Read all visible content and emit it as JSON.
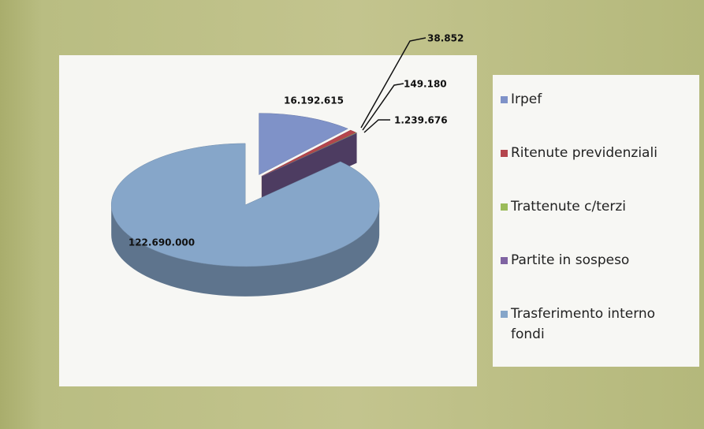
{
  "chart_data": {
    "type": "pie3d",
    "categories": [
      "Irpef",
      "Ritenute previdenziali",
      "Trattenute c/terzi",
      "Partite in sospeso",
      "Trasferimento interno fondi"
    ],
    "values": [
      16192615,
      1239676,
      149180,
      38852,
      122690000
    ],
    "value_labels": [
      "16.192.615",
      "1.239.676",
      "149.180",
      "38.852",
      "122.690.000"
    ],
    "colors": [
      "#7f92c8",
      "#b4454d",
      "#9bbb59",
      "#8064a2",
      "#86a6c9"
    ],
    "legend": "right"
  }
}
